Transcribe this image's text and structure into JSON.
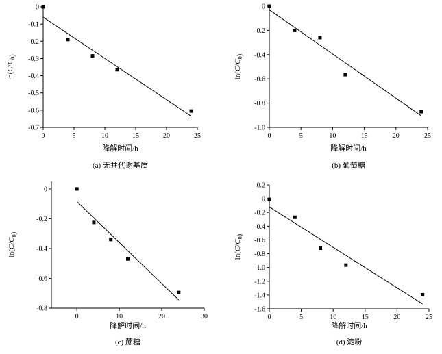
{
  "chart_data": [
    {
      "type": "scatter",
      "panel": "a",
      "caption": "(a) 无共代谢基质",
      "xlabel": "降解时间/h",
      "ylabel": "ln(C/C0)",
      "xlim": [
        0,
        25
      ],
      "ylim": [
        -0.7,
        0
      ],
      "x_ticks": [
        0,
        5,
        10,
        15,
        20,
        25
      ],
      "y_ticks": [
        0,
        -0.1,
        -0.2,
        -0.3,
        -0.4,
        -0.5,
        -0.6,
        -0.7
      ],
      "x_tick_labels": [
        "0",
        "5",
        "10",
        "15",
        "20",
        "25"
      ],
      "y_tick_labels": [
        "0",
        "-0.1",
        "-0.2",
        "-0.3",
        "-0.4",
        "-0.5",
        "-0.6",
        "-0.7"
      ],
      "points": [
        {
          "x": 0,
          "y": 0
        },
        {
          "x": 4,
          "y": -0.19
        },
        {
          "x": 8,
          "y": -0.285
        },
        {
          "x": 12,
          "y": -0.365
        },
        {
          "x": 24,
          "y": -0.605
        }
      ],
      "fit_line": {
        "x": [
          0,
          24
        ],
        "y": [
          -0.06,
          -0.635
        ]
      },
      "grid": false
    },
    {
      "type": "scatter",
      "panel": "b",
      "caption": "(b) 葡萄糖",
      "xlabel": "降解时间/h",
      "ylabel": "ln(C/C0)",
      "xlim": [
        0,
        25
      ],
      "ylim": [
        -1.0,
        0
      ],
      "x_ticks": [
        0,
        5,
        10,
        15,
        20,
        25
      ],
      "y_ticks": [
        0,
        -0.2,
        -0.4,
        -0.6,
        -0.8,
        -1.0
      ],
      "x_tick_labels": [
        "0",
        "5",
        "10",
        "15",
        "20",
        "25"
      ],
      "y_tick_labels": [
        "0",
        "-0.2",
        "-0.4",
        "-0.6",
        "-0.8",
        "-1.0"
      ],
      "points": [
        {
          "x": 0,
          "y": 0
        },
        {
          "x": 4,
          "y": -0.2
        },
        {
          "x": 8,
          "y": -0.26
        },
        {
          "x": 12,
          "y": -0.565
        },
        {
          "x": 24,
          "y": -0.87
        }
      ],
      "fit_line": {
        "x": [
          0,
          24
        ],
        "y": [
          -0.03,
          -0.905
        ]
      },
      "grid": false
    },
    {
      "type": "scatter",
      "panel": "c",
      "caption": "(c) 蔗糖",
      "xlabel": "降解时间/h",
      "ylabel": "ln(C/C0)",
      "xlim": [
        -6,
        30
      ],
      "ylim": [
        -0.8,
        0.05
      ],
      "x_ticks": [
        0,
        10,
        20,
        30
      ],
      "y_ticks": [
        0,
        -0.2,
        -0.4,
        -0.6,
        -0.8
      ],
      "x_tick_labels": [
        "0",
        "10",
        "20",
        "30"
      ],
      "y_tick_labels": [
        "0",
        "-0.2",
        "-0.4",
        "-0.6",
        "-0.8"
      ],
      "points": [
        {
          "x": 0,
          "y": 0
        },
        {
          "x": 4,
          "y": -0.225
        },
        {
          "x": 8,
          "y": -0.34
        },
        {
          "x": 12,
          "y": -0.47
        },
        {
          "x": 24,
          "y": -0.695
        }
      ],
      "fit_line": {
        "x": [
          0,
          24
        ],
        "y": [
          -0.085,
          -0.745
        ]
      },
      "grid": false
    },
    {
      "type": "scatter",
      "panel": "d",
      "caption": "(d) 淀粉",
      "xlabel": "降解时间/h",
      "ylabel": "ln(C/C0)",
      "xlim": [
        0,
        25
      ],
      "ylim": [
        -1.6,
        0.2
      ],
      "x_ticks": [
        0,
        5,
        10,
        15,
        20,
        25
      ],
      "y_ticks": [
        0.2,
        0,
        -0.2,
        -0.4,
        -0.6,
        -0.8,
        -1.0,
        -1.2,
        -1.4,
        -1.6
      ],
      "x_tick_labels": [
        "0",
        "5",
        "10",
        "15",
        "20",
        "25"
      ],
      "y_tick_labels": [
        "0.2",
        "0",
        "-0.2",
        "-0.4",
        "-0.6",
        "-0.8",
        "-1.0",
        "-1.2",
        "-1.4",
        "-1.6"
      ],
      "points": [
        {
          "x": 0,
          "y": -0.01
        },
        {
          "x": 4,
          "y": -0.27
        },
        {
          "x": 8,
          "y": -0.72
        },
        {
          "x": 12,
          "y": -0.965
        },
        {
          "x": 24,
          "y": -1.395
        }
      ],
      "fit_line": {
        "x": [
          0,
          24
        ],
        "y": [
          -0.12,
          -1.53
        ]
      },
      "grid": false
    }
  ]
}
